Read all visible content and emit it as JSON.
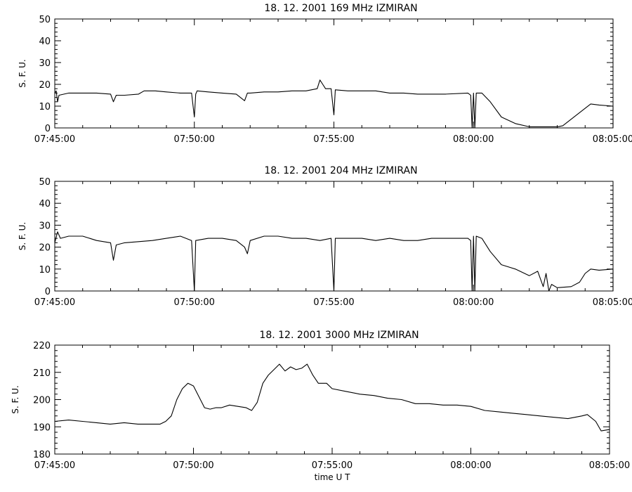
{
  "chart_data": [
    {
      "type": "line",
      "title": "18.  12.  2001    169  MHz    IZMIRAN",
      "ylabel": "S. F. U.",
      "xlabel": "",
      "ylim": [
        0,
        50
      ],
      "yticks": [
        "0",
        "10",
        "20",
        "30",
        "40",
        "50"
      ],
      "xlim_minutes": [
        0,
        20
      ],
      "xticks": [
        "07:45:00",
        "07:50:00",
        "07:55:00",
        "08:00:00",
        "08:05:00"
      ],
      "series": [
        {
          "values": [
            [
              0,
              16
            ],
            [
              0.05,
              17
            ],
            [
              0.1,
              12
            ],
            [
              0.15,
              15
            ],
            [
              0.5,
              16
            ],
            [
              1,
              16
            ],
            [
              1.5,
              16
            ],
            [
              2,
              15.5
            ],
            [
              2.1,
              12
            ],
            [
              2.2,
              15
            ],
            [
              2.5,
              15
            ],
            [
              3,
              15.5
            ],
            [
              3.2,
              17
            ],
            [
              3.6,
              17
            ],
            [
              4,
              16.5
            ],
            [
              4.5,
              16
            ],
            [
              4.9,
              16
            ],
            [
              5,
              5
            ],
            [
              5.05,
              15.5
            ],
            [
              5.1,
              17
            ],
            [
              5.5,
              16.5
            ],
            [
              6,
              16
            ],
            [
              6.5,
              15.5
            ],
            [
              6.8,
              12.5
            ],
            [
              6.9,
              16
            ],
            [
              7,
              16
            ],
            [
              7.5,
              16.5
            ],
            [
              8,
              16.5
            ],
            [
              8.5,
              17
            ],
            [
              9,
              17
            ],
            [
              9.4,
              18
            ],
            [
              9.5,
              22
            ],
            [
              9.6,
              20
            ],
            [
              9.7,
              18
            ],
            [
              9.9,
              18
            ],
            [
              10,
              6
            ],
            [
              10.05,
              17.5
            ],
            [
              10.5,
              17
            ],
            [
              11,
              17
            ],
            [
              11.5,
              17
            ],
            [
              12,
              16
            ],
            [
              12.5,
              16
            ],
            [
              13,
              15.5
            ],
            [
              13.5,
              15.5
            ],
            [
              14,
              15.5
            ],
            [
              14.8,
              16
            ],
            [
              14.9,
              15
            ],
            [
              14.95,
              0
            ],
            [
              15.0,
              16
            ],
            [
              15.05,
              0
            ],
            [
              15.1,
              16
            ],
            [
              15.3,
              16
            ],
            [
              15.6,
              12
            ],
            [
              16,
              5
            ],
            [
              16.5,
              2
            ],
            [
              17,
              0.5
            ],
            [
              17.5,
              0.5
            ],
            [
              18,
              0.5
            ],
            [
              18.2,
              1
            ],
            [
              18.5,
              4
            ],
            [
              19,
              9
            ],
            [
              19.2,
              11
            ],
            [
              19.5,
              10.5
            ],
            [
              20,
              10
            ],
            [
              20,
              0
            ]
          ]
        }
      ]
    },
    {
      "type": "line",
      "title": "18.  12.  2001    204  MHz    IZMIRAN",
      "ylabel": "S. F. U.",
      "xlabel": "",
      "ylim": [
        0,
        50
      ],
      "yticks": [
        "0",
        "10",
        "20",
        "30",
        "40",
        "50"
      ],
      "xlim_minutes": [
        0,
        20
      ],
      "xticks": [
        "07:45:00",
        "07:50:00",
        "07:55:00",
        "08:00:00",
        "08:05:00"
      ],
      "series": [
        {
          "values": [
            [
              0,
              22
            ],
            [
              0.1,
              27
            ],
            [
              0.2,
              24
            ],
            [
              0.5,
              25
            ],
            [
              1,
              25
            ],
            [
              1.5,
              23
            ],
            [
              2,
              22
            ],
            [
              2.1,
              14
            ],
            [
              2.2,
              21
            ],
            [
              2.5,
              22
            ],
            [
              3,
              22.5
            ],
            [
              3.5,
              23
            ],
            [
              4,
              24
            ],
            [
              4.5,
              25
            ],
            [
              4.9,
              23
            ],
            [
              5,
              0
            ],
            [
              5.05,
              23
            ],
            [
              5.5,
              24
            ],
            [
              6,
              24
            ],
            [
              6.5,
              23
            ],
            [
              6.8,
              20
            ],
            [
              6.9,
              17
            ],
            [
              7,
              23
            ],
            [
              7.5,
              25
            ],
            [
              8,
              25
            ],
            [
              8.5,
              24
            ],
            [
              9,
              24
            ],
            [
              9.5,
              23
            ],
            [
              9.9,
              24
            ],
            [
              10,
              0
            ],
            [
              10.05,
              24
            ],
            [
              10.5,
              24
            ],
            [
              11,
              24
            ],
            [
              11.5,
              23
            ],
            [
              12,
              24
            ],
            [
              12.5,
              23
            ],
            [
              13,
              23
            ],
            [
              13.5,
              24
            ],
            [
              14,
              24
            ],
            [
              14.8,
              24
            ],
            [
              14.9,
              23
            ],
            [
              14.95,
              0
            ],
            [
              15.0,
              25
            ],
            [
              15.05,
              0
            ],
            [
              15.1,
              25
            ],
            [
              15.3,
              24
            ],
            [
              15.6,
              18
            ],
            [
              16,
              12
            ],
            [
              16.5,
              10
            ],
            [
              17,
              7
            ],
            [
              17.3,
              9
            ],
            [
              17.5,
              2
            ],
            [
              17.6,
              8
            ],
            [
              17.7,
              0
            ],
            [
              17.8,
              3
            ],
            [
              18,
              1.5
            ],
            [
              18.5,
              2
            ],
            [
              18.8,
              4
            ],
            [
              19,
              8
            ],
            [
              19.2,
              10
            ],
            [
              19.5,
              9.5
            ],
            [
              20,
              10
            ],
            [
              20,
              0
            ]
          ]
        }
      ]
    },
    {
      "type": "line",
      "title": "18.  12.  2001    3000  MHz    IZMIRAN",
      "ylabel": "S. F. U.",
      "xlabel": "time   U  T",
      "ylim": [
        180,
        220
      ],
      "yticks": [
        "180",
        "190",
        "200",
        "210",
        "220"
      ],
      "xlim_minutes": [
        0,
        20
      ],
      "xticks": [
        "07:45:00",
        "07:50:00",
        "07:55:00",
        "08:00:00",
        "08:05:00"
      ],
      "series": [
        {
          "values": [
            [
              0,
              192
            ],
            [
              0.5,
              192.5
            ],
            [
              1,
              192
            ],
            [
              1.5,
              191.5
            ],
            [
              2,
              191
            ],
            [
              2.5,
              191.5
            ],
            [
              3,
              191
            ],
            [
              3.5,
              191
            ],
            [
              3.8,
              191
            ],
            [
              4,
              192
            ],
            [
              4.2,
              194
            ],
            [
              4.4,
              200
            ],
            [
              4.6,
              204
            ],
            [
              4.8,
              206
            ],
            [
              5,
              205
            ],
            [
              5.2,
              201
            ],
            [
              5.4,
              197
            ],
            [
              5.6,
              196.5
            ],
            [
              5.8,
              197
            ],
            [
              6,
              197
            ],
            [
              6.3,
              198
            ],
            [
              6.6,
              197.5
            ],
            [
              6.9,
              197
            ],
            [
              7,
              196.5
            ],
            [
              7.1,
              196
            ],
            [
              7.3,
              199
            ],
            [
              7.5,
              206
            ],
            [
              7.7,
              209
            ],
            [
              7.9,
              211
            ],
            [
              8.1,
              213
            ],
            [
              8.3,
              210.5
            ],
            [
              8.5,
              212
            ],
            [
              8.7,
              211
            ],
            [
              8.9,
              211.5
            ],
            [
              9.1,
              213
            ],
            [
              9.3,
              209
            ],
            [
              9.5,
              206
            ],
            [
              9.8,
              206
            ],
            [
              10,
              204
            ],
            [
              10.5,
              203
            ],
            [
              11,
              202
            ],
            [
              11.5,
              201.5
            ],
            [
              12,
              200.5
            ],
            [
              12.5,
              200
            ],
            [
              13,
              198.5
            ],
            [
              13.5,
              198.5
            ],
            [
              14,
              198
            ],
            [
              14.5,
              198
            ],
            [
              15,
              197.5
            ],
            [
              15.5,
              196
            ],
            [
              16,
              195.5
            ],
            [
              16.5,
              195
            ],
            [
              17,
              194.5
            ],
            [
              17.5,
              194
            ],
            [
              18,
              193.5
            ],
            [
              18.5,
              193
            ],
            [
              19,
              194
            ],
            [
              19.2,
              194.5
            ],
            [
              19.5,
              192
            ],
            [
              19.7,
              188.5
            ],
            [
              20,
              189
            ]
          ]
        }
      ]
    }
  ]
}
